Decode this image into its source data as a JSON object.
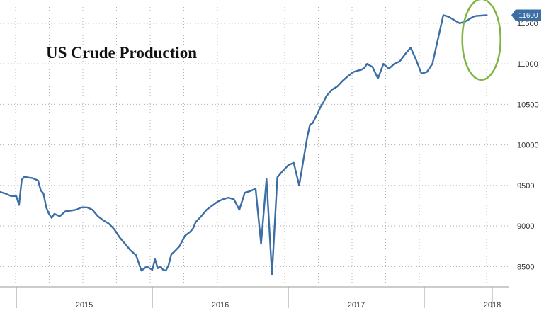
{
  "chart_data": {
    "type": "line",
    "title": "US Crude Production",
    "xlabel": "",
    "ylabel": "",
    "x_ticks": [
      "2015",
      "2016",
      "2017",
      "2018"
    ],
    "y_ticks": [
      8500,
      9000,
      9500,
      10000,
      10500,
      11000,
      11500
    ],
    "ylim": [
      8250,
      11700
    ],
    "xlim": [
      2014.88,
      2018.62
    ],
    "grid": true,
    "y_axis_position": "right",
    "last_value_label": "11600",
    "colors": {
      "line": "#3a6ea5",
      "badge": "#3a6ea5",
      "highlight": "#7db53e",
      "grid": "#b0b0b0"
    },
    "series": [
      {
        "x": [
          2014.88,
          2014.92,
          2014.96,
          2015.0,
          2015.02,
          2015.04,
          2015.06,
          2015.08,
          2015.12,
          2015.16,
          2015.18,
          2015.2,
          2015.22,
          2015.24,
          2015.26,
          2015.28,
          2015.32,
          2015.36,
          2015.4,
          2015.44,
          2015.48,
          2015.52,
          2015.56,
          2015.6,
          2015.64,
          2015.68,
          2015.72,
          2015.76,
          2015.8,
          2015.84,
          2015.88,
          2015.92,
          2015.96,
          2016.0,
          2016.02,
          2016.04,
          2016.06,
          2016.08,
          2016.1,
          2016.12,
          2016.14,
          2016.16,
          2016.2,
          2016.24,
          2016.28,
          2016.3,
          2016.32,
          2016.36,
          2016.4,
          2016.44,
          2016.48,
          2016.52,
          2016.56,
          2016.6,
          2016.64,
          2016.68,
          2016.72,
          2016.76,
          2016.8,
          2016.84,
          2016.88,
          2016.92,
          2016.96,
          2017.0,
          2017.04,
          2017.08,
          2017.12,
          2017.14,
          2017.16,
          2017.18,
          2017.2,
          2017.22,
          2017.24,
          2017.26,
          2017.28,
          2017.32,
          2017.36,
          2017.4,
          2017.44,
          2017.48,
          2017.5,
          2017.52,
          2017.54,
          2017.56,
          2017.58,
          2017.62,
          2017.66,
          2017.7,
          2017.74,
          2017.78,
          2017.82,
          2017.86,
          2017.9,
          2017.94,
          2017.98,
          2018.02,
          2018.06,
          2018.1,
          2018.14,
          2018.18,
          2018.22,
          2018.26,
          2018.3,
          2018.34,
          2018.36,
          2018.38,
          2018.42,
          2018.46
        ],
        "y": [
          9420,
          9400,
          9370,
          9370,
          9260,
          9570,
          9610,
          9600,
          9590,
          9560,
          9440,
          9400,
          9230,
          9150,
          9100,
          9150,
          9120,
          9180,
          9190,
          9200,
          9230,
          9230,
          9200,
          9120,
          9070,
          9030,
          8960,
          8860,
          8780,
          8700,
          8640,
          8450,
          8500,
          8460,
          8590,
          8480,
          8500,
          8460,
          8450,
          8520,
          8650,
          8680,
          8750,
          8880,
          8930,
          8970,
          9050,
          9120,
          9200,
          9250,
          9300,
          9330,
          9350,
          9330,
          9200,
          9410,
          9430,
          9460,
          8780,
          9580,
          8400,
          9600,
          9680,
          9750,
          9780,
          9500,
          9900,
          10100,
          10250,
          10270,
          10340,
          10400,
          10480,
          10530,
          10600,
          10680,
          10720,
          10790,
          10850,
          10900,
          10910,
          10920,
          10930,
          10950,
          11000,
          10960,
          10820,
          11000,
          10940,
          11000,
          11030,
          11120,
          11200,
          11050,
          10880,
          10900,
          11000,
          11300,
          11600,
          11580,
          11540,
          11500,
          11520,
          11560,
          11580,
          11590,
          11595,
          11600
        ]
      }
    ]
  }
}
